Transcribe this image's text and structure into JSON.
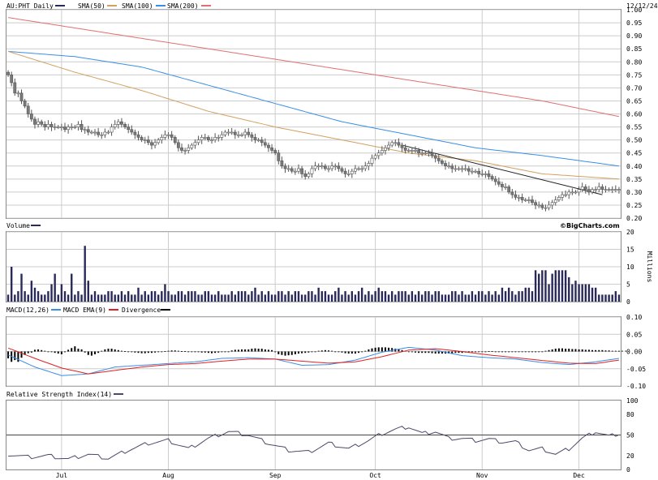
{
  "colors": {
    "price": "#7a7a7a",
    "sma50": "#d4a060",
    "sma100": "#3a8ee6",
    "sma200": "#e07070",
    "volume": "#2a2a5a",
    "macd": "#3a8ee6",
    "macd_ema": "#e02020",
    "divergence": "#000000",
    "rsi": "#4a4a6a",
    "grid": "#cccccc"
  },
  "header": {
    "symbol_label": "AU:PHT Daily",
    "sma50_label": "SMA(50)",
    "sma100_label": "SMA(100)",
    "sma200_label": "SMA(200)",
    "date_label": "12/12/24",
    "credit": "©BigCharts.com"
  },
  "volume_panel": {
    "title": "Volume",
    "unit_label": "Millions"
  },
  "macd_panel": {
    "title_macd": "MACD(12,26)",
    "title_ema": "MACD EMA(9)",
    "title_div": "Divergence"
  },
  "rsi_panel": {
    "title": "Relative Strength Index(14)"
  },
  "chart_data": [
    {
      "type": "candlestick",
      "panel": "price",
      "ylim": [
        0.2,
        1.0
      ],
      "y_ticks": [
        "1.00",
        "0.95",
        "0.90",
        "0.85",
        "0.80",
        "0.75",
        "0.70",
        "0.65",
        "0.60",
        "0.55",
        "0.50",
        "0.45",
        "0.40",
        "0.35",
        "0.30",
        "0.25",
        "0.20"
      ],
      "x_ticks": [
        "Jul",
        "Aug",
        "Sep",
        "Oct",
        "Nov",
        "Dec"
      ],
      "x_tick_days": [
        16,
        48,
        80,
        110,
        142,
        171
      ],
      "num_days": 184,
      "close": [
        0.75,
        0.72,
        0.68,
        0.68,
        0.65,
        0.63,
        0.6,
        0.58,
        0.56,
        0.57,
        0.56,
        0.55,
        0.56,
        0.55,
        0.55,
        0.55,
        0.55,
        0.54,
        0.55,
        0.55,
        0.55,
        0.56,
        0.54,
        0.54,
        0.53,
        0.53,
        0.53,
        0.52,
        0.52,
        0.53,
        0.53,
        0.55,
        0.56,
        0.57,
        0.56,
        0.55,
        0.54,
        0.53,
        0.52,
        0.51,
        0.5,
        0.5,
        0.49,
        0.48,
        0.49,
        0.5,
        0.51,
        0.52,
        0.52,
        0.51,
        0.49,
        0.47,
        0.46,
        0.46,
        0.47,
        0.48,
        0.49,
        0.5,
        0.51,
        0.51,
        0.5,
        0.5,
        0.51,
        0.51,
        0.52,
        0.53,
        0.53,
        0.53,
        0.52,
        0.52,
        0.52,
        0.53,
        0.52,
        0.51,
        0.5,
        0.5,
        0.49,
        0.48,
        0.47,
        0.46,
        0.45,
        0.42,
        0.4,
        0.39,
        0.39,
        0.38,
        0.38,
        0.39,
        0.37,
        0.36,
        0.37,
        0.39,
        0.4,
        0.4,
        0.4,
        0.39,
        0.39,
        0.4,
        0.4,
        0.39,
        0.38,
        0.37,
        0.37,
        0.38,
        0.39,
        0.39,
        0.39,
        0.4,
        0.41,
        0.43,
        0.44,
        0.45,
        0.46,
        0.47,
        0.48,
        0.49,
        0.49,
        0.48,
        0.47,
        0.46,
        0.46,
        0.46,
        0.46,
        0.45,
        0.45,
        0.45,
        0.45,
        0.44,
        0.43,
        0.42,
        0.41,
        0.4,
        0.4,
        0.39,
        0.39,
        0.39,
        0.39,
        0.39,
        0.38,
        0.38,
        0.38,
        0.37,
        0.37,
        0.37,
        0.36,
        0.35,
        0.34,
        0.33,
        0.32,
        0.32,
        0.3,
        0.29,
        0.28,
        0.28,
        0.27,
        0.27,
        0.27,
        0.26,
        0.25,
        0.25,
        0.24,
        0.24,
        0.25,
        0.26,
        0.27,
        0.28,
        0.29,
        0.29,
        0.3,
        0.3,
        0.3,
        0.31,
        0.32,
        0.31,
        0.3,
        0.31,
        0.31,
        0.32,
        0.31,
        0.31,
        0.31,
        0.31,
        0.31,
        0.31
      ],
      "sma50": {
        "days": [
          0,
          20,
          40,
          60,
          80,
          100,
          120,
          140,
          160,
          183
        ],
        "values": [
          0.84,
          0.76,
          0.69,
          0.61,
          0.55,
          0.5,
          0.45,
          0.42,
          0.37,
          0.35
        ]
      },
      "sma100": {
        "days": [
          0,
          20,
          40,
          60,
          80,
          100,
          120,
          140,
          160,
          183
        ],
        "values": [
          0.84,
          0.82,
          0.78,
          0.71,
          0.64,
          0.57,
          0.52,
          0.47,
          0.44,
          0.4
        ]
      },
      "sma200": {
        "days": [
          0,
          20,
          40,
          60,
          80,
          100,
          120,
          140,
          160,
          183
        ],
        "values": [
          0.97,
          0.93,
          0.89,
          0.85,
          0.81,
          0.77,
          0.73,
          0.69,
          0.65,
          0.59
        ]
      },
      "trendline": {
        "days": [
          118,
          178
        ],
        "values": [
          0.48,
          0.29
        ]
      }
    },
    {
      "type": "bar",
      "panel": "volume",
      "ylim": [
        0,
        20
      ],
      "y_ticks": [
        "20",
        "15",
        "10",
        "5",
        "0"
      ],
      "values": [
        2,
        10,
        2,
        3,
        8,
        3,
        2,
        6,
        4,
        3,
        2,
        2,
        3,
        5,
        8,
        2,
        5,
        3,
        2,
        8,
        2,
        3,
        2,
        16,
        6,
        2,
        3,
        2,
        2,
        2,
        3,
        3,
        2,
        2,
        3,
        2,
        3,
        2,
        2,
        4,
        2,
        3,
        2,
        3,
        3,
        2,
        3,
        5,
        3,
        2,
        2,
        3,
        3,
        2,
        3,
        3,
        3,
        2,
        2,
        3,
        3,
        2,
        2,
        3,
        2,
        2,
        2,
        3,
        2,
        3,
        3,
        3,
        2,
        3,
        4,
        2,
        3,
        2,
        3,
        2,
        2,
        3,
        3,
        2,
        3,
        2,
        3,
        3,
        2,
        2,
        3,
        3,
        2,
        4,
        3,
        3,
        2,
        2,
        3,
        4,
        2,
        3,
        2,
        3,
        2,
        3,
        4,
        2,
        3,
        2,
        3,
        4,
        3,
        3,
        2,
        3,
        2,
        3,
        3,
        3,
        2,
        3,
        2,
        3,
        2,
        3,
        3,
        2,
        3,
        3,
        2,
        2,
        2,
        3,
        3,
        2,
        3,
        2,
        2,
        3,
        2,
        3,
        3,
        2,
        3,
        2,
        3,
        2,
        4,
        3,
        4,
        3,
        2,
        3,
        3,
        4,
        4,
        3,
        9,
        8,
        9,
        9,
        5,
        8,
        9,
        9,
        9,
        9,
        7,
        5,
        6,
        5,
        5,
        5,
        5,
        4,
        4,
        2,
        2,
        2,
        2,
        2,
        3,
        2
      ]
    },
    {
      "type": "line",
      "panel": "macd",
      "ylim": [
        -0.1,
        0.1
      ],
      "y_ticks": [
        "0.10",
        "0.05",
        "0.00",
        "-0.05",
        "-0.10"
      ],
      "series": [
        {
          "key": "macd",
          "days": [
            0,
            8,
            16,
            24,
            32,
            40,
            48,
            56,
            64,
            72,
            80,
            88,
            96,
            104,
            112,
            120,
            128,
            136,
            144,
            152,
            160,
            168,
            176,
            183
          ],
          "values": [
            -0.01,
            -0.045,
            -0.07,
            -0.065,
            -0.045,
            -0.04,
            -0.035,
            -0.03,
            -0.02,
            -0.018,
            -0.022,
            -0.04,
            -0.038,
            -0.025,
            -0.002,
            0.012,
            0.004,
            -0.012,
            -0.018,
            -0.022,
            -0.032,
            -0.038,
            -0.03,
            -0.02
          ]
        },
        {
          "key": "macd_ema",
          "days": [
            0,
            8,
            16,
            24,
            32,
            40,
            48,
            56,
            64,
            72,
            80,
            88,
            96,
            104,
            112,
            120,
            128,
            136,
            144,
            152,
            160,
            168,
            176,
            183
          ],
          "values": [
            0.01,
            -0.02,
            -0.048,
            -0.065,
            -0.055,
            -0.045,
            -0.038,
            -0.035,
            -0.028,
            -0.022,
            -0.022,
            -0.028,
            -0.034,
            -0.03,
            -0.015,
            0.004,
            0.008,
            0.0,
            -0.01,
            -0.018,
            -0.026,
            -0.034,
            -0.035,
            -0.025
          ]
        }
      ],
      "divergence": [
        -0.02,
        -0.03,
        -0.025,
        -0.03,
        -0.018,
        -0.01,
        -0.005,
        -0.003,
        0.005,
        0.006,
        0.004,
        0.002,
        0.0,
        -0.002,
        -0.004,
        -0.006,
        -0.008,
        -0.002,
        0.005,
        0.01,
        0.015,
        0.008,
        0.006,
        -0.003,
        -0.01,
        -0.012,
        -0.008,
        -0.004,
        0.002,
        0.006,
        0.008,
        0.008,
        0.006,
        0.004,
        0.002,
        0.001,
        0.0,
        -0.002,
        -0.003,
        -0.004,
        -0.005,
        -0.005,
        -0.004,
        -0.004,
        -0.003,
        -0.002,
        -0.001,
        0.001,
        0.002,
        0.003,
        0.003,
        0.002,
        0.001,
        0.001,
        0.0,
        -0.001,
        -0.002,
        -0.002,
        -0.003,
        -0.003,
        -0.004,
        -0.005,
        -0.004,
        -0.003,
        -0.002,
        -0.002,
        -0.002,
        0.003,
        0.005,
        0.005,
        0.006,
        0.006,
        0.006,
        0.008,
        0.009,
        0.008,
        0.008,
        0.006,
        0.005,
        0.004,
        -0.002,
        -0.008,
        -0.01,
        -0.012,
        -0.011,
        -0.01,
        -0.008,
        -0.006,
        -0.005,
        -0.004,
        -0.003,
        -0.002,
        0.0,
        0.002,
        0.003,
        0.004,
        0.003,
        0.002,
        0.0,
        -0.001,
        -0.003,
        -0.005,
        -0.006,
        -0.006,
        -0.006,
        -0.004,
        -0.002,
        0.002,
        0.006,
        0.009,
        0.011,
        0.012,
        0.012,
        0.012,
        0.011,
        0.01,
        0.008,
        0.006,
        0.004,
        0.002,
        0.0,
        -0.002,
        -0.003,
        -0.004,
        -0.004,
        -0.004,
        -0.004,
        -0.005,
        -0.006,
        -0.006,
        -0.006,
        -0.006,
        -0.006,
        -0.005,
        -0.004,
        -0.004,
        -0.004,
        -0.003,
        -0.003,
        -0.002,
        -0.001,
        -0.001,
        0.0,
        0.0,
        0.001,
        0.001,
        0.0,
        -0.001,
        -0.002,
        -0.002,
        -0.002,
        -0.001,
        -0.001,
        0.0,
        0.0,
        0.0,
        -0.001,
        -0.002,
        -0.002,
        -0.001,
        0.0,
        0.002,
        0.004,
        0.006,
        0.008,
        0.009,
        0.009,
        0.008,
        0.008,
        0.007,
        0.007,
        0.006,
        0.006,
        0.005,
        0.005,
        0.004,
        0.004,
        0.004,
        0.004,
        0.003,
        0.003,
        0.002,
        0.002,
        0.002,
        0.002,
        0.002
      ]
    },
    {
      "type": "line",
      "panel": "rsi",
      "ylim": [
        0,
        100
      ],
      "y_ticks": [
        "100",
        "80",
        "50",
        "20",
        "0"
      ],
      "reference_line": 50,
      "days": [
        0,
        6,
        12,
        18,
        24,
        30,
        36,
        42,
        48,
        54,
        60,
        66,
        72,
        78,
        84,
        90,
        96,
        102,
        108,
        112,
        116,
        120,
        124,
        128,
        132,
        136,
        140,
        144,
        148,
        152,
        156,
        160,
        164,
        168,
        172,
        176,
        180,
        183
      ],
      "values": [
        22,
        18,
        20,
        15,
        22,
        16,
        28,
        38,
        42,
        30,
        45,
        55,
        50,
        38,
        28,
        25,
        38,
        30,
        42,
        52,
        58,
        62,
        52,
        55,
        45,
        45,
        42,
        44,
        40,
        40,
        28,
        30,
        22,
        30,
        45,
        55,
        48,
        52
      ]
    }
  ]
}
